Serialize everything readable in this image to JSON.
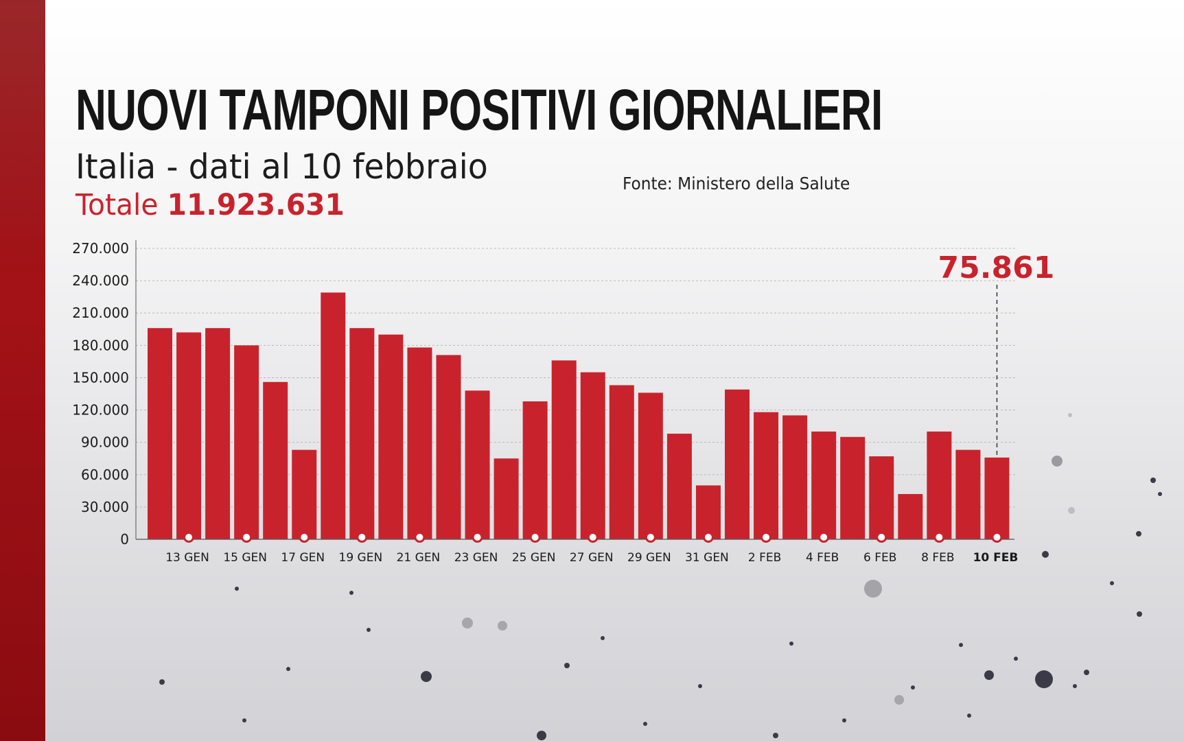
{
  "header": {
    "title": "NUOVI TAMPONI POSITIVI GIORNALIERI",
    "subtitle": "Italia - dati al 10 febbraio",
    "total_label": "Totale",
    "total_value": "11.923.631",
    "source": "Fonte: Ministero della Salute"
  },
  "colors": {
    "accent": "#c8232c",
    "bar": "#c8232c",
    "side_bar": "#9c1116",
    "text": "#151515"
  },
  "chart_data": {
    "type": "bar",
    "title": "NUOVI TAMPONI POSITIVI GIORNALIERI",
    "subtitle": "Italia - dati al 10 febbraio",
    "categories": [
      "12 GEN",
      "13 GEN",
      "14 GEN",
      "15 GEN",
      "16 GEN",
      "17 GEN",
      "18 GEN",
      "19 GEN",
      "20 GEN",
      "21 GEN",
      "22 GEN",
      "23 GEN",
      "24 GEN",
      "25 GEN",
      "26 GEN",
      "27 GEN",
      "28 GEN",
      "29 GEN",
      "30 GEN",
      "31 GEN",
      "1 FEB",
      "2 FEB",
      "3 FEB",
      "4 FEB",
      "5 FEB",
      "6 FEB",
      "7 FEB",
      "8 FEB",
      "9 FEB",
      "10 FEB"
    ],
    "tick_labels": [
      "13 GEN",
      "15 GEN",
      "17 GEN",
      "19 GEN",
      "21 GEN",
      "23 GEN",
      "25 GEN",
      "27 GEN",
      "29 GEN",
      "31 GEN",
      "2 FEB",
      "4 FEB",
      "6 FEB",
      "8 FEB",
      "10 FEB"
    ],
    "values": [
      196000,
      192000,
      196000,
      180000,
      146000,
      83000,
      229000,
      196000,
      190000,
      178000,
      171000,
      138000,
      75000,
      128000,
      166000,
      155000,
      143000,
      136000,
      98000,
      50000,
      139000,
      118000,
      115000,
      100000,
      95000,
      77000,
      42000,
      100000,
      83000,
      75861
    ],
    "ylim": [
      0,
      270000
    ],
    "yticks": [
      "0",
      "30.000",
      "60.000",
      "90.000",
      "120.000",
      "150.000",
      "180.000",
      "210.000",
      "240.000",
      "270.000"
    ],
    "ytick_values": [
      0,
      30000,
      60000,
      90000,
      120000,
      150000,
      180000,
      210000,
      240000,
      270000
    ],
    "grid": true,
    "highlight": {
      "category": "10 FEB",
      "label": "75.861"
    },
    "xlabel": "",
    "ylabel": ""
  }
}
